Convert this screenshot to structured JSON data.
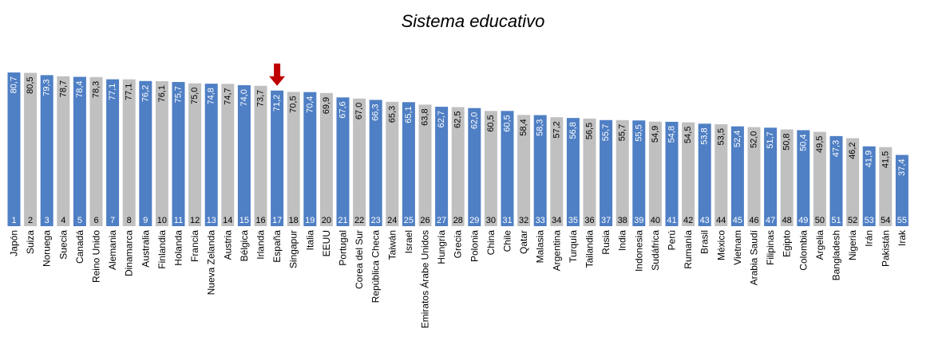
{
  "chart_data": {
    "type": "bar",
    "title": "Sistema educativo",
    "xlabel": "",
    "ylabel": "",
    "ylim": [
      0,
      80.7
    ],
    "grid": false,
    "legend": "none",
    "colors": {
      "primary": "#4f7fc4",
      "secondary": "#c0c0c0",
      "arrow": "#c00000"
    },
    "highlight": "España",
    "categories": [
      "Japón",
      "Suiza",
      "Noruega",
      "Suecia",
      "Canadá",
      "Reino Unido",
      "Alemania",
      "Dinamarca",
      "Australia",
      "Finlandia",
      "Holanda",
      "Francia",
      "Nueva Zelanda",
      "Austria",
      "Bélgica",
      "Irlanda",
      "España",
      "Singapur",
      "Italia",
      "EEUU",
      "Portugal",
      "Corea del Sur",
      "República Checa",
      "Taiwán",
      "Israel",
      "Emiratos Árabe Unidos",
      "Hungría",
      "Grecia",
      "Polonia",
      "China",
      "Chile",
      "Qatar",
      "Malasia",
      "Argentina",
      "Turquía",
      "Tailandia",
      "Rusia",
      "India",
      "Indonesia",
      "Sudáfrica",
      "Perú",
      "Rumanía",
      "Brasil",
      "México",
      "Vietnam",
      "Arabia Saudí",
      "Filipinas",
      "Egipto",
      "Colombia",
      "Argelia",
      "Bangladesh",
      "Nigeria",
      "Irán",
      "Pakistán",
      "Irak"
    ],
    "values": [
      80.7,
      80.5,
      79.3,
      78.7,
      78.4,
      78.3,
      77.1,
      77.1,
      76.2,
      76.1,
      75.7,
      75.0,
      74.8,
      74.7,
      74.0,
      73.7,
      71.2,
      70.5,
      70.4,
      69.9,
      67.6,
      67.0,
      66.3,
      65.3,
      65.1,
      63.8,
      62.7,
      62.5,
      62.0,
      60.5,
      60.5,
      58.4,
      58.3,
      57.2,
      56.8,
      56.5,
      55.7,
      55.7,
      55.5,
      54.9,
      54.8,
      54.5,
      53.8,
      53.5,
      52.4,
      52.0,
      51.7,
      50.8,
      50.4,
      49.5,
      47.3,
      46.2,
      41.9,
      41.5,
      37.4
    ],
    "value_labels": [
      "80,7",
      "80,5",
      "79,3",
      "78,7",
      "78,4",
      "78,3",
      "77,1",
      "77,1",
      "76,2",
      "76,1",
      "75,7",
      "75,0",
      "74,8",
      "74,7",
      "74,0",
      "73,7",
      "71,2",
      "70,5",
      "70,4",
      "69,9",
      "67,6",
      "67,0",
      "66,3",
      "65,3",
      "65,1",
      "63,8",
      "62,7",
      "62,5",
      "62,0",
      "60,5",
      "60,5",
      "58,4",
      "58,3",
      "57,2",
      "56,8",
      "56,5",
      "55,7",
      "55,7",
      "55,5",
      "54,9",
      "54,8",
      "54,5",
      "53,8",
      "53,5",
      "52,4",
      "52,0",
      "51,7",
      "50,8",
      "50,4",
      "49,5",
      "47,3",
      "46,2",
      "41,9",
      "41,5",
      "37,4"
    ],
    "ranks": [
      "1",
      "2",
      "3",
      "4",
      "5",
      "6",
      "7",
      "8",
      "9",
      "10",
      "11",
      "12",
      "13",
      "14",
      "15",
      "16",
      "17",
      "18",
      "19",
      "20",
      "21",
      "22",
      "23",
      "24",
      "25",
      "26",
      "27",
      "28",
      "29",
      "30",
      "31",
      "32",
      "33",
      "34",
      "35",
      "36",
      "37",
      "38",
      "39",
      "40",
      "41",
      "42",
      "43",
      "44",
      "45",
      "46",
      "47",
      "48",
      "49",
      "50",
      "51",
      "52",
      "53",
      "54",
      "55"
    ]
  }
}
